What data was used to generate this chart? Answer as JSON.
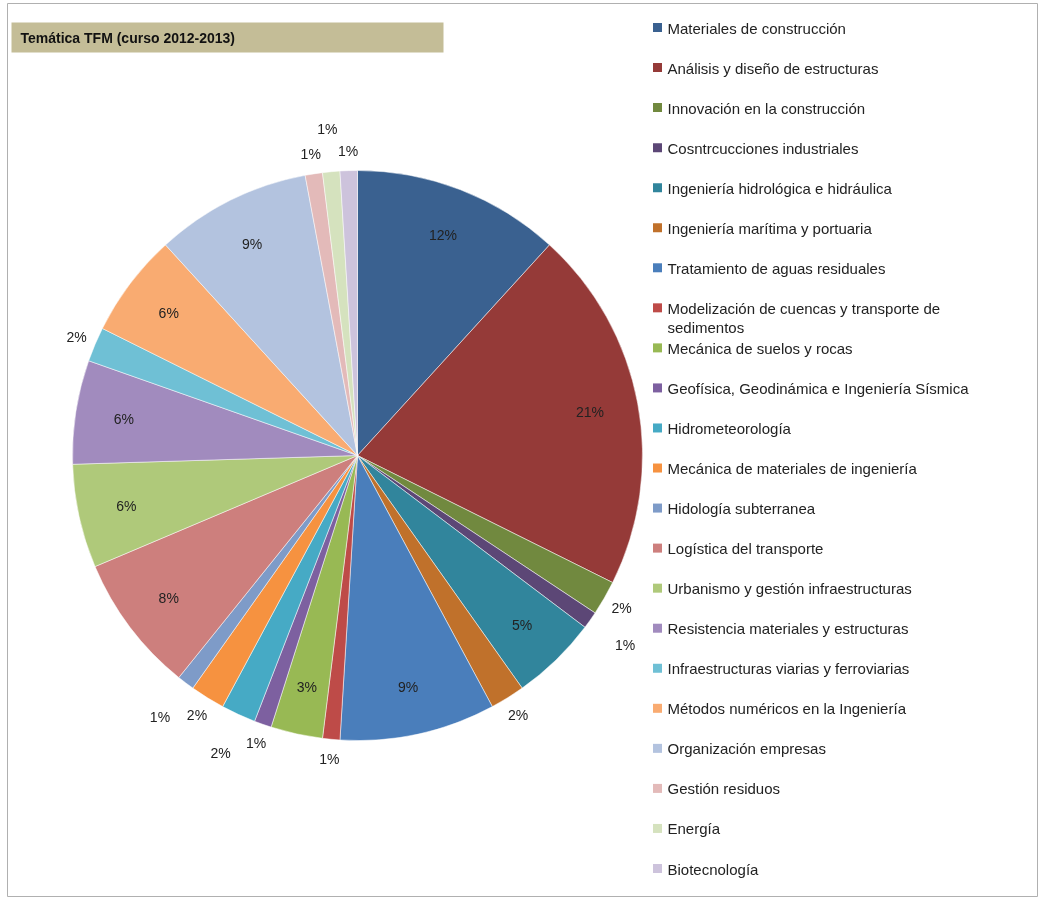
{
  "chart_data": {
    "type": "pie",
    "title": "Temática TFM  (curso 2012-2013)",
    "categories": [
      "Materiales de construcción",
      "Análisis y diseño de estructuras",
      "Innovación en la construcción",
      "Cosntrcucciones industriales",
      "Ingeniería hidrológica e hidráulica",
      "Ingeniería marítima y portuaria",
      "Tratamiento de aguas residuales",
      "Modelización de cuencas y transporte de sedimentos",
      "Mecánica de suelos y rocas",
      "Geofísica, Geodinámica e Ingeniería Sísmica",
      "Hidrometeorología",
      "Mecánica de materiales de ingeniería",
      "Hidología subterranea",
      "Logística del transporte",
      "Urbanismo y gestión infraestructuras",
      "Resistencia  materiales y estructuras",
      "Infraestructuras viarias y ferroviarias",
      "Métodos  numéricos en la Ingeniería",
      "Organización empresas",
      "Gestión residuos",
      "Energía",
      "Biotecnología"
    ],
    "values": [
      12,
      21,
      2,
      1,
      5,
      2,
      9,
      1,
      3,
      1,
      2,
      2,
      1,
      8,
      6,
      6,
      2,
      6,
      9,
      1,
      1,
      1
    ],
    "colors": [
      "#3a6190",
      "#953a38",
      "#71893f",
      "#5c4776",
      "#31859c",
      "#c0712b",
      "#4a7ebb",
      "#be4b48",
      "#98b954",
      "#7d60a0",
      "#46aac5",
      "#f69240",
      "#7e9bc8",
      "#cd7f7d",
      "#afc97a",
      "#a18bbe",
      "#6fc0d5",
      "#f9ab71",
      "#b3c3df",
      "#e3bab9",
      "#d5e2be",
      "#cdc3dc"
    ],
    "value_labels": [
      "12%",
      "21%",
      "2%",
      "1%",
      "5%",
      "2%",
      "9%",
      "1%",
      "3%",
      "1%",
      "2%",
      "2%",
      "1%",
      "8%",
      "6%",
      "6%",
      "2%",
      "6%",
      "9%",
      "1%",
      "1%",
      "1%"
    ],
    "legend": "right"
  }
}
